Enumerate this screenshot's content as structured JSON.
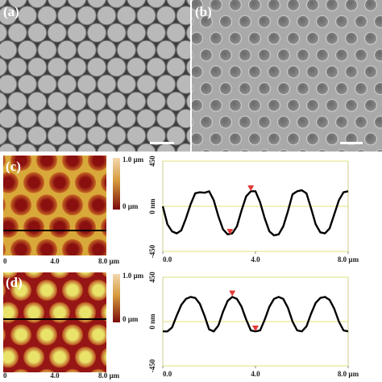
{
  "panels": {
    "labels": [
      "(a)",
      "(b)",
      "(c)",
      "(d)"
    ],
    "maps": [
      {
        "colorbar": [
          "1.0 µm",
          "0 µm"
        ],
        "axis": [
          "0",
          "4.0",
          "8.0 µm"
        ]
      },
      {
        "colorbar": [
          "1.0 µm",
          "0 µm"
        ],
        "axis": [
          "0",
          "4.0",
          "8.0 µm"
        ]
      }
    ]
  },
  "chart_data": [
    {
      "type": "line",
      "color": "#000000",
      "x": [
        0,
        0.2,
        0.4,
        0.6,
        0.8,
        1.0,
        1.2,
        1.4,
        1.6,
        1.8,
        2.0,
        2.2,
        2.4,
        2.6,
        2.8,
        3.0,
        3.2,
        3.4,
        3.6,
        3.8,
        4.0,
        4.2,
        4.4,
        4.6,
        4.8,
        5.0,
        5.2,
        5.4,
        5.6,
        5.8,
        6.0,
        6.2,
        6.4,
        6.6,
        6.8,
        7.0,
        7.2,
        7.4,
        7.6,
        7.8,
        8.0
      ],
      "values": [
        0,
        -180,
        -250,
        -270,
        -240,
        -120,
        20,
        130,
        140,
        135,
        150,
        60,
        -100,
        -230,
        -280,
        -270,
        -200,
        -40,
        100,
        150,
        150,
        40,
        -120,
        -250,
        -290,
        -280,
        -200,
        -50,
        120,
        150,
        160,
        130,
        -20,
        -180,
        -260,
        -270,
        -220,
        -80,
        60,
        140,
        150
      ],
      "xlim": [
        0,
        8
      ],
      "ylim": [
        -450,
        450
      ],
      "xticks": [
        {
          "value": 0,
          "label": "0.0"
        },
        {
          "value": 4,
          "label": "4.0"
        },
        {
          "value": 8,
          "label": "8.0 µm"
        }
      ],
      "yticks": [
        450,
        {
          "value": 0,
          "label": "0 nm"
        },
        -450
      ],
      "grid": true,
      "markers": {
        "color": "#e53935",
        "points": [
          {
            "x": 3.8,
            "y": 185
          },
          {
            "x": 2.9,
            "y": -250
          }
        ]
      }
    },
    {
      "type": "line",
      "color": "#000000",
      "x": [
        0,
        0.2,
        0.4,
        0.6,
        0.8,
        1.0,
        1.2,
        1.4,
        1.6,
        1.8,
        2.0,
        2.2,
        2.4,
        2.6,
        2.8,
        3.0,
        3.2,
        3.4,
        3.6,
        3.8,
        4.0,
        4.2,
        4.4,
        4.6,
        4.8,
        5.0,
        5.2,
        5.4,
        5.6,
        5.8,
        6.0,
        6.2,
        6.4,
        6.6,
        6.8,
        7.0,
        7.2,
        7.4,
        7.6,
        7.8,
        8.0
      ],
      "values": [
        -100,
        -100,
        -60,
        60,
        170,
        230,
        250,
        240,
        180,
        60,
        -80,
        -100,
        -40,
        100,
        210,
        250,
        230,
        150,
        20,
        -90,
        -100,
        -90,
        20,
        150,
        230,
        250,
        230,
        140,
        0,
        -90,
        -100,
        -50,
        80,
        190,
        240,
        250,
        220,
        130,
        0,
        -90,
        -100
      ],
      "xlim": [
        0,
        8
      ],
      "ylim": [
        -450,
        450
      ],
      "xticks": [
        {
          "value": 0,
          "label": "0.0"
        },
        {
          "value": 4,
          "label": "4.0"
        },
        {
          "value": 8,
          "label": "8.0 µm"
        }
      ],
      "yticks": [
        450,
        {
          "value": 0,
          "label": "0 nm"
        },
        -450
      ],
      "grid": true,
      "markers": {
        "color": "#e53935",
        "points": [
          {
            "x": 3.0,
            "y": 290
          },
          {
            "x": 4.0,
            "y": -65
          }
        ]
      }
    }
  ]
}
